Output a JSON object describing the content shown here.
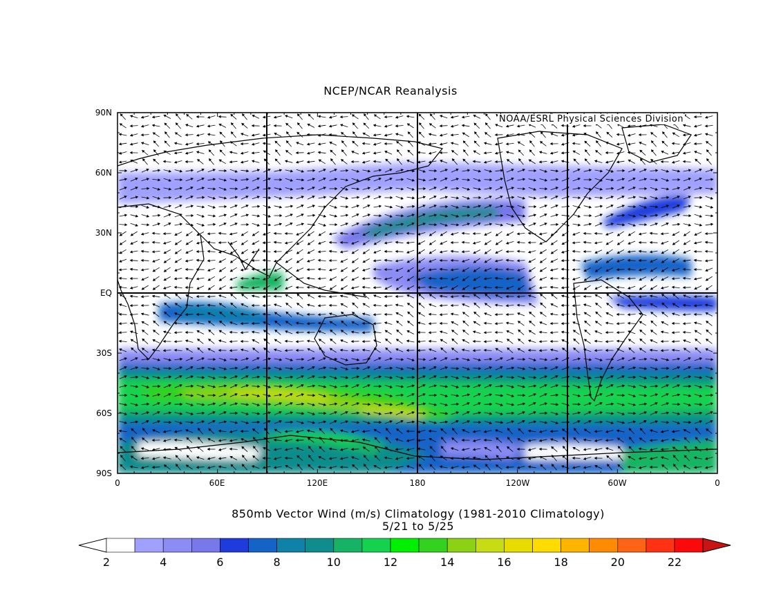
{
  "title": "NCEP/NCAR Reanalysis",
  "credit": "NOAA/ESRL Physical Sciences Division",
  "latitude_labels": [
    "90N",
    "60N",
    "30N",
    "EQ",
    "30S",
    "60S",
    "90S"
  ],
  "longitude_labels": [
    "0",
    "60E",
    "120E",
    "180",
    "120W",
    "60W",
    "0"
  ],
  "subtitle_line1": "850mb Vector Wind (m/s) Climatology (1981-2010 Climatology)",
  "subtitle_line2": "5/21  to 5/25",
  "colorbar": {
    "labels": [
      "2",
      "4",
      "6",
      "8",
      "10",
      "12",
      "14",
      "16",
      "18",
      "20",
      "22"
    ],
    "colors": [
      "#ffffff",
      "#a0a0ff",
      "#8c8cf5",
      "#7878eb",
      "#1e3cdc",
      "#1464c8",
      "#0f82aa",
      "#0f8c8c",
      "#14b464",
      "#14d250",
      "#00f000",
      "#32d21e",
      "#8cd214",
      "#c8dc14",
      "#e6dc00",
      "#ffdc00",
      "#ffb400",
      "#ff8c00",
      "#ff6414",
      "#ff3214",
      "#fa0a0a"
    ],
    "over_color": "#c81414"
  }
}
